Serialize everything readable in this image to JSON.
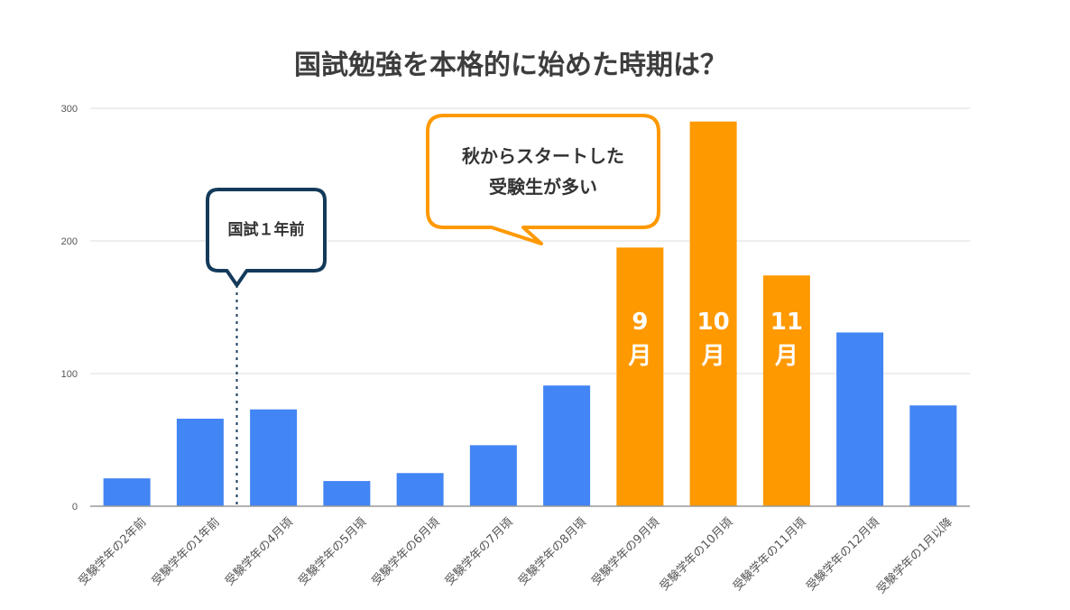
{
  "chart_data": {
    "type": "bar",
    "title": "国試勉強を本格的に始めた時期は？",
    "categories": [
      "受験学年の2年前",
      "受験学年の1年前",
      "受験学年の4月頃",
      "受験学年の5月頃",
      "受験学年の6月頃",
      "受験学年の7月頃",
      "受験学年の8月頃",
      "受験学年の9月頃",
      "受験学年の10月頃",
      "受験学年の11月頃",
      "受験学年の12月頃",
      "受験学年の1月以降"
    ],
    "values": [
      21,
      66,
      73,
      19,
      25,
      46,
      91,
      195,
      290,
      174,
      131,
      76
    ],
    "ylim": [
      0,
      300
    ],
    "yticks": [
      "0",
      "100",
      "200",
      "300"
    ],
    "grid": true,
    "colors": {
      "default": "#4285f4",
      "highlight": "#ff9900",
      "callout_blue": "#143a5a",
      "callout_orange": "#ff9900"
    },
    "highlight_labels": [
      {
        "index": 7,
        "lines": [
          "9",
          "月"
        ]
      },
      {
        "index": 8,
        "lines": [
          "10",
          "月"
        ]
      },
      {
        "index": 9,
        "lines": [
          "11",
          "月"
        ]
      }
    ],
    "annotations": [
      {
        "text": [
          "国試１年前"
        ],
        "between": [
          1,
          2
        ],
        "style": "blue"
      },
      {
        "text": [
          "秋からスタートした",
          "受験生が多い"
        ],
        "style": "orange"
      }
    ]
  }
}
